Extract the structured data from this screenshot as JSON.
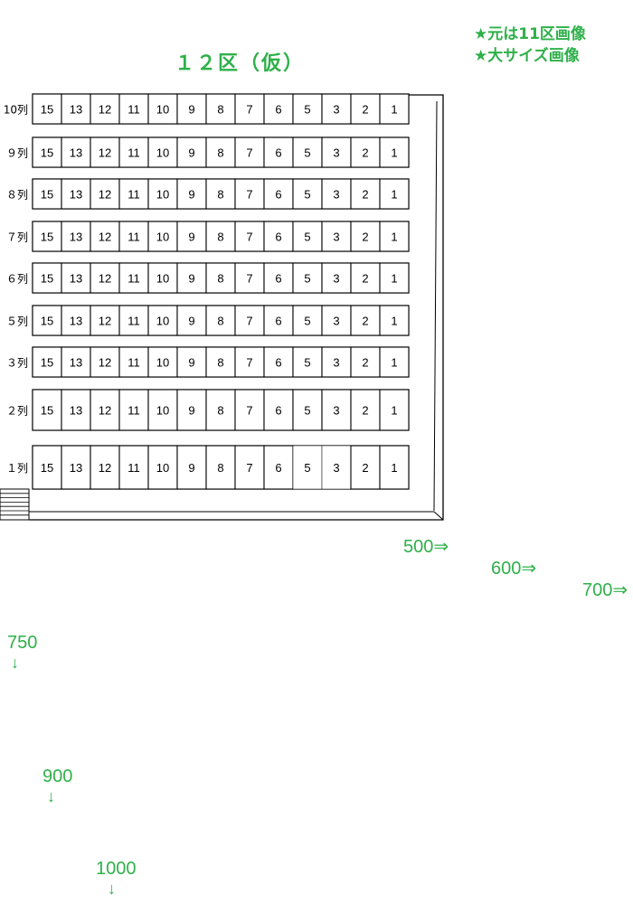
{
  "page": {
    "title": "１２区（仮）",
    "links": [
      {
        "star": "★",
        "text": "元は11区画像"
      },
      {
        "star": "★",
        "text": "大サイズ画像"
      }
    ]
  },
  "seat_map": {
    "seat_numbers": [
      "15",
      "13",
      "12",
      "11",
      "10",
      "9",
      "8",
      "7",
      "6",
      "5",
      "3",
      "2",
      "1"
    ],
    "rows": [
      {
        "label": "10列"
      },
      {
        "label": "９列"
      },
      {
        "label": "８列"
      },
      {
        "label": "７列"
      },
      {
        "label": "６列"
      },
      {
        "label": "５列"
      },
      {
        "label": "３列"
      },
      {
        "label": "２列"
      },
      {
        "label": "１列"
      }
    ]
  },
  "markers": {
    "horizontal": [
      {
        "label": "500",
        "arrow": "⇒"
      },
      {
        "label": "600",
        "arrow": "⇒"
      },
      {
        "label": "700",
        "arrow": "⇒"
      }
    ],
    "vertical": [
      {
        "label": "750",
        "arrow": "↓"
      },
      {
        "label": "900",
        "arrow": "↓"
      },
      {
        "label": "1000",
        "arrow": "↓"
      }
    ]
  },
  "colors": {
    "accent": "#2fb04a",
    "line": "#000000"
  }
}
